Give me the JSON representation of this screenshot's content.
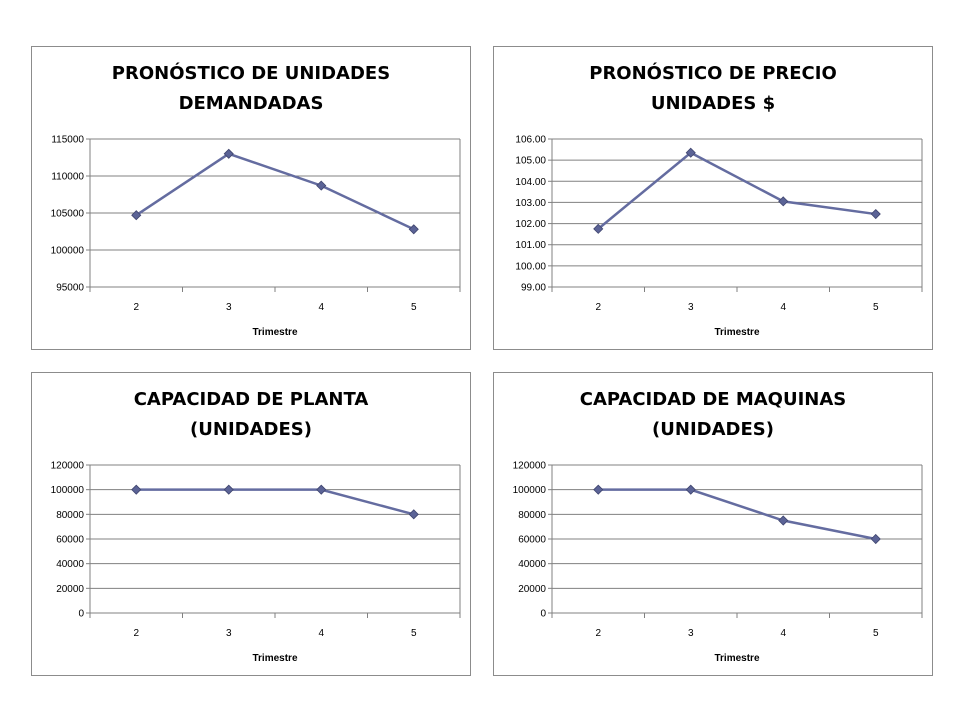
{
  "style": {
    "line_color": "#646ca0",
    "marker_color": "#5b6396",
    "grid_color": "#808080",
    "border_color": "#8c8c8c"
  },
  "chart_data": [
    {
      "type": "line",
      "title": [
        "PRONÓSTICO DE UNIDADES",
        "DEMANDADAS"
      ],
      "xlabel": "Trimestre",
      "ylabel": "",
      "categories": [
        "2",
        "3",
        "4",
        "5"
      ],
      "series": [
        {
          "values": [
            104700,
            113000,
            108700,
            102800
          ]
        }
      ],
      "ylim": [
        95000,
        115000
      ],
      "yticks": [
        "95000",
        "100000",
        "105000",
        "110000",
        "115000"
      ],
      "grid": true,
      "legend": "none"
    },
    {
      "type": "line",
      "title": [
        "PRONÓSTICO DE PRECIO",
        "UNIDADES $"
      ],
      "xlabel": "Trimestre",
      "ylabel": "",
      "categories": [
        "2",
        "3",
        "4",
        "5"
      ],
      "series": [
        {
          "values": [
            101.75,
            105.35,
            103.05,
            102.45
          ]
        }
      ],
      "ylim": [
        99,
        106
      ],
      "yticks": [
        "99.00",
        "100.00",
        "101.00",
        "102.00",
        "103.00",
        "104.00",
        "105.00",
        "106.00"
      ],
      "grid": true,
      "legend": "none"
    },
    {
      "type": "line",
      "title": [
        "CAPACIDAD DE PLANTA",
        "(UNIDADES)"
      ],
      "xlabel": "Trimestre",
      "ylabel": "",
      "categories": [
        "2",
        "3",
        "4",
        "5"
      ],
      "series": [
        {
          "values": [
            100000,
            100000,
            100000,
            80000
          ]
        }
      ],
      "ylim": [
        0,
        120000
      ],
      "yticks": [
        "0",
        "20000",
        "40000",
        "60000",
        "80000",
        "100000",
        "120000"
      ],
      "grid": true,
      "legend": "none"
    },
    {
      "type": "line",
      "title": [
        "CAPACIDAD DE MAQUINAS",
        "(UNIDADES)"
      ],
      "xlabel": "Trimestre",
      "ylabel": "",
      "categories": [
        "2",
        "3",
        "4",
        "5"
      ],
      "series": [
        {
          "values": [
            100000,
            100000,
            75000,
            60000
          ]
        }
      ],
      "ylim": [
        0,
        120000
      ],
      "yticks": [
        "0",
        "20000",
        "40000",
        "60000",
        "80000",
        "100000",
        "120000"
      ],
      "grid": true,
      "legend": "none"
    }
  ]
}
